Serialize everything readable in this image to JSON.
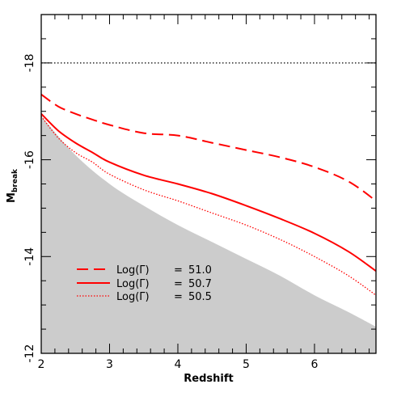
{
  "chart_data": {
    "type": "line",
    "xlabel": "Redshift",
    "ylabel": "M",
    "ylabel_subscript": "break",
    "xlim": [
      2,
      6.9
    ],
    "ylim": [
      -12,
      -19
    ],
    "y_inverted": true,
    "xticks": [
      2,
      3,
      4,
      5,
      6
    ],
    "yticks": [
      -12,
      -14,
      -16,
      -18
    ],
    "xtick_labels": [
      "2",
      "3",
      "4",
      "5",
      "6"
    ],
    "ytick_labels": [
      "-12",
      "-14",
      "-16",
      "-18"
    ],
    "grid": false,
    "legend_position": "bottom-left",
    "reference_line": {
      "y": -18,
      "style": "dotted",
      "color": "#000000"
    },
    "shaded_region": {
      "color": "#cccccc",
      "upper_boundary": {
        "x": [
          2.0,
          2.5,
          3.0,
          3.5,
          4.0,
          4.5,
          5.0,
          5.5,
          6.0,
          6.5,
          6.9
        ],
        "y": [
          -16.9,
          -16.1,
          -15.5,
          -15.05,
          -14.65,
          -14.3,
          -13.95,
          -13.6,
          -13.2,
          -12.85,
          -12.55
        ]
      }
    },
    "series": [
      {
        "name": "Log(Γ) = 51.0",
        "style": "dashed",
        "color": "#ff0000",
        "x": [
          2.0,
          2.25,
          2.5,
          2.75,
          3.0,
          3.5,
          4.0,
          4.5,
          5.0,
          5.5,
          6.0,
          6.5,
          6.9
        ],
        "y": [
          -17.35,
          -17.1,
          -16.95,
          -16.83,
          -16.72,
          -16.55,
          -16.5,
          -16.35,
          -16.2,
          -16.05,
          -15.85,
          -15.55,
          -15.15
        ]
      },
      {
        "name": "Log(Γ) = 50.7",
        "style": "solid",
        "color": "#ff0000",
        "x": [
          2.0,
          2.25,
          2.5,
          2.75,
          3.0,
          3.5,
          4.0,
          4.5,
          5.0,
          5.5,
          6.0,
          6.5,
          6.9
        ],
        "y": [
          -16.95,
          -16.6,
          -16.35,
          -16.15,
          -15.95,
          -15.68,
          -15.5,
          -15.3,
          -15.05,
          -14.78,
          -14.48,
          -14.1,
          -13.7
        ]
      },
      {
        "name": "Log(Γ) = 50.5",
        "style": "dotted",
        "color": "#ff0000",
        "x": [
          2.0,
          2.25,
          2.5,
          2.75,
          3.0,
          3.5,
          4.0,
          4.5,
          5.0,
          5.5,
          6.0,
          6.5,
          6.9
        ],
        "y": [
          -16.9,
          -16.45,
          -16.15,
          -15.95,
          -15.7,
          -15.38,
          -15.15,
          -14.9,
          -14.65,
          -14.35,
          -14.0,
          -13.6,
          -13.2
        ]
      }
    ],
    "legend": [
      {
        "label_prefix": "Log(Γ)",
        "equals": "=",
        "value": "51.0"
      },
      {
        "label_prefix": "Log(Γ)",
        "equals": "=",
        "value": "50.7"
      },
      {
        "label_prefix": "Log(Γ)",
        "equals": "=",
        "value": "50.5"
      }
    ]
  }
}
